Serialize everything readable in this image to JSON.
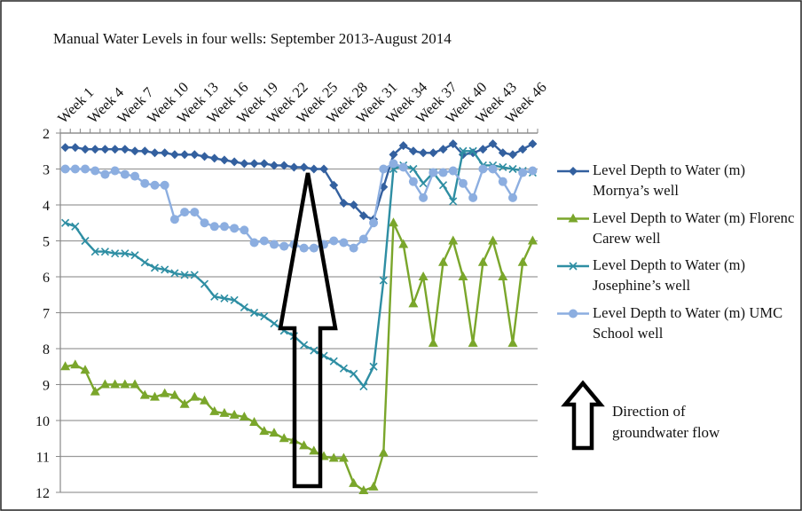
{
  "chart_data": {
    "type": "line",
    "title": "Manual Water Levels in four wells: September 2013-August 2014",
    "categories": [
      "Week 1",
      null,
      null,
      "Week 4",
      null,
      null,
      "Week 7",
      null,
      null,
      "Week 10",
      null,
      null,
      "Week 13",
      null,
      null,
      "Week 16",
      null,
      null,
      "Week 19",
      null,
      null,
      "Week 22",
      null,
      null,
      "Week 25",
      null,
      null,
      "Week 28",
      null,
      null,
      "Week 31",
      null,
      null,
      "Week 34",
      null,
      null,
      "Week 37",
      null,
      null,
      "Week 40",
      null,
      null,
      "Week 43",
      null,
      null,
      "Week 46",
      null,
      null
    ],
    "ylim": [
      2,
      12
    ],
    "y_inverted": true,
    "yticks": [
      2,
      3,
      4,
      5,
      6,
      7,
      8,
      9,
      10,
      11,
      12
    ],
    "grid": true,
    "legend": "right",
    "series": [
      {
        "name": "Level Depth to Water (m) Mornya’s well",
        "color": "#33609f",
        "marker": "diamond",
        "values": [
          2.4,
          2.4,
          2.45,
          2.45,
          2.45,
          2.45,
          2.45,
          2.5,
          2.5,
          2.55,
          2.55,
          2.6,
          2.6,
          2.6,
          2.65,
          2.7,
          2.75,
          2.8,
          2.85,
          2.85,
          2.85,
          2.9,
          2.9,
          2.95,
          2.95,
          3.0,
          3.0,
          3.45,
          3.95,
          4.0,
          4.3,
          4.4,
          3.5,
          2.6,
          2.35,
          2.5,
          2.55,
          2.55,
          2.45,
          2.3,
          2.6,
          2.55,
          2.45,
          2.3,
          2.55,
          2.6,
          2.45,
          2.3
        ]
      },
      {
        "name": "Level Depth to Water (m) Florenc Carew well",
        "color": "#7aa62b",
        "marker": "triangle",
        "values": [
          8.5,
          8.45,
          8.6,
          9.2,
          9.0,
          9.0,
          9.0,
          9.0,
          9.3,
          9.35,
          9.25,
          9.3,
          9.55,
          9.35,
          9.45,
          9.75,
          9.8,
          9.85,
          9.9,
          10.05,
          10.3,
          10.35,
          10.5,
          10.55,
          10.7,
          10.85,
          11.0,
          11.05,
          11.05,
          11.75,
          11.95,
          11.85,
          10.9,
          4.5,
          5.1,
          6.75,
          6.0,
          7.85,
          5.6,
          5.0,
          6.0,
          7.85,
          5.6,
          5.0,
          6.0,
          7.85,
          5.6,
          5.0
        ]
      },
      {
        "name": "Level Depth to Water (m) Josephine’s well",
        "color": "#2e8ea3",
        "marker": "x",
        "values": [
          4.5,
          4.6,
          5.0,
          5.3,
          5.3,
          5.35,
          5.35,
          5.4,
          5.6,
          5.75,
          5.8,
          5.9,
          5.95,
          5.95,
          6.2,
          6.55,
          6.6,
          6.65,
          6.85,
          7.0,
          7.1,
          7.3,
          7.5,
          7.65,
          7.9,
          8.05,
          8.2,
          8.35,
          8.55,
          8.7,
          9.05,
          8.5,
          6.1,
          3.0,
          2.9,
          3.0,
          3.4,
          3.1,
          3.45,
          3.9,
          2.5,
          2.5,
          2.9,
          2.9,
          2.95,
          3.0,
          3.05,
          3.1
        ]
      },
      {
        "name": "Level Depth to Water (m) UMC School well",
        "color": "#8caee0",
        "marker": "circle",
        "values": [
          3.0,
          3.0,
          3.0,
          3.05,
          3.15,
          3.05,
          3.15,
          3.2,
          3.4,
          3.45,
          3.45,
          4.4,
          4.2,
          4.2,
          4.5,
          4.6,
          4.6,
          4.65,
          4.7,
          5.05,
          5.0,
          5.1,
          5.15,
          5.1,
          5.2,
          5.2,
          5.1,
          5.0,
          5.05,
          5.2,
          4.95,
          4.5,
          3.0,
          2.85,
          2.95,
          3.35,
          3.8,
          3.1,
          3.1,
          3.05,
          3.4,
          3.8,
          3.0,
          3.0,
          3.35,
          3.8,
          3.1,
          3.05
        ]
      }
    ],
    "annotations": [
      {
        "text": "Direction of groundwater flow"
      }
    ]
  }
}
